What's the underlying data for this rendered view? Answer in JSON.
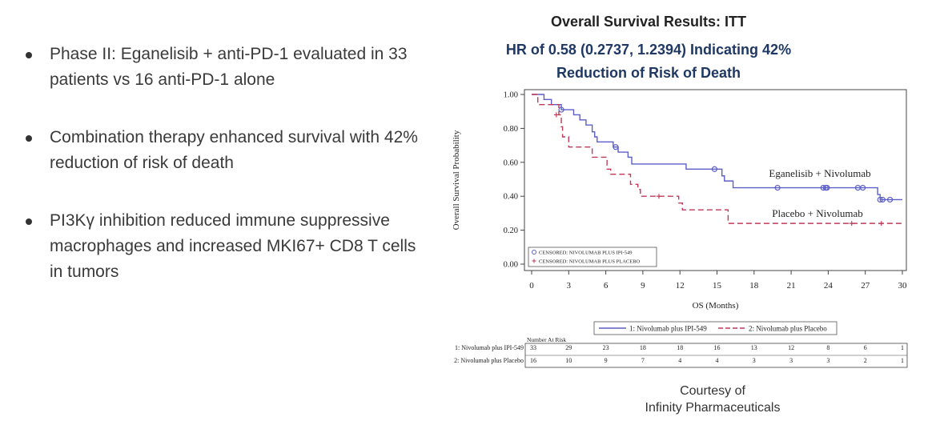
{
  "bullets": [
    "Phase II: Eganelisib + anti-PD-1 evaluated in 33 patients vs 16 anti-PD-1 alone",
    "Combination therapy enhanced survival with 42% reduction of risk of death",
    "PI3Kγ inhibition reduced immune suppressive macrophages and increased MKI67+ CD8 T cells in tumors"
  ],
  "figure": {
    "title": "Overall Survival Results: ITT",
    "subtitle_line1": "HR of 0.58 (0.2737, 1.2394) Indicating 42%",
    "subtitle_line2": "Reduction of Risk of Death",
    "credit_line1": "Courtesy of",
    "credit_line2": "Infinity Pharmaceuticals"
  },
  "chart_data": {
    "type": "line",
    "subtype": "kaplan-meier step",
    "xlabel": "OS (Months)",
    "ylabel": "Overall Survival Probability",
    "xlim": [
      0,
      30
    ],
    "ylim": [
      0,
      1
    ],
    "xticks": [
      0,
      3,
      6,
      9,
      12,
      15,
      18,
      21,
      24,
      27,
      30
    ],
    "yticks": [
      0.0,
      0.2,
      0.4,
      0.6,
      0.8,
      1.0
    ],
    "ytick_labels": [
      "0.00",
      "0.20",
      "0.40",
      "0.60",
      "0.80",
      "1.00"
    ],
    "series": [
      {
        "name": "1: Nivolumab plus IPI-549",
        "annotation": "Eganelisib + Nivolumab",
        "color": "#5b5fc7",
        "dash": "solid",
        "steps": [
          [
            0,
            1.0
          ],
          [
            1.0,
            0.97
          ],
          [
            1.6,
            0.94
          ],
          [
            2.4,
            0.91
          ],
          [
            3.4,
            0.88
          ],
          [
            3.9,
            0.85
          ],
          [
            4.4,
            0.82
          ],
          [
            4.9,
            0.78
          ],
          [
            5.1,
            0.75
          ],
          [
            5.3,
            0.72
          ],
          [
            6.6,
            0.69
          ],
          [
            7.0,
            0.66
          ],
          [
            7.8,
            0.63
          ],
          [
            8.1,
            0.59
          ],
          [
            12.5,
            0.56
          ],
          [
            15.4,
            0.52
          ],
          [
            15.6,
            0.49
          ],
          [
            16.3,
            0.45
          ],
          [
            28.0,
            0.41
          ],
          [
            28.2,
            0.38
          ],
          [
            30,
            0.38
          ]
        ],
        "censored": [
          [
            2.4,
            0.91
          ],
          [
            6.8,
            0.69
          ],
          [
            14.8,
            0.56
          ],
          [
            19.9,
            0.45
          ],
          [
            23.6,
            0.45
          ],
          [
            23.8,
            0.45
          ],
          [
            23.9,
            0.45
          ],
          [
            26.4,
            0.45
          ],
          [
            26.8,
            0.45
          ],
          [
            28.2,
            0.38
          ],
          [
            28.4,
            0.38
          ],
          [
            29.0,
            0.38
          ]
        ]
      },
      {
        "name": "2: Nivolumab plus Placebo",
        "annotation": "Placebo + Nivolumab",
        "color": "#c0395a",
        "dash": "dashed",
        "steps": [
          [
            0,
            1.0
          ],
          [
            0.5,
            0.94
          ],
          [
            2.2,
            0.88
          ],
          [
            2.4,
            0.81
          ],
          [
            2.5,
            0.75
          ],
          [
            3.0,
            0.69
          ],
          [
            4.9,
            0.63
          ],
          [
            6.1,
            0.56
          ],
          [
            6.4,
            0.53
          ],
          [
            8.0,
            0.47
          ],
          [
            8.6,
            0.44
          ],
          [
            8.8,
            0.4
          ],
          [
            11.9,
            0.36
          ],
          [
            12.2,
            0.32
          ],
          [
            15.9,
            0.24
          ],
          [
            30,
            0.24
          ]
        ],
        "censored": [
          [
            2.0,
            0.88
          ],
          [
            10.3,
            0.4
          ],
          [
            25.9,
            0.24
          ],
          [
            28.3,
            0.24
          ]
        ]
      }
    ],
    "censor_legend": [
      "CENSORED: NIVOLUMAB PLUS IPI-549",
      "CENSORED: NIVOLUMAB PLUS PLACEBO"
    ],
    "legend": [
      "1: Nivolumab plus IPI-549",
      "2: Nivolumab plus Placebo"
    ],
    "risk_table": {
      "header": "Number At Risk",
      "rows": [
        {
          "label": "1: Nivolumab plus IPI-549",
          "values": [
            33,
            29,
            23,
            18,
            18,
            16,
            13,
            12,
            8,
            6,
            1
          ]
        },
        {
          "label": "2: Nivolumab plus Placebo",
          "values": [
            16,
            10,
            9,
            7,
            4,
            4,
            3,
            3,
            3,
            2,
            1
          ]
        }
      ]
    }
  }
}
